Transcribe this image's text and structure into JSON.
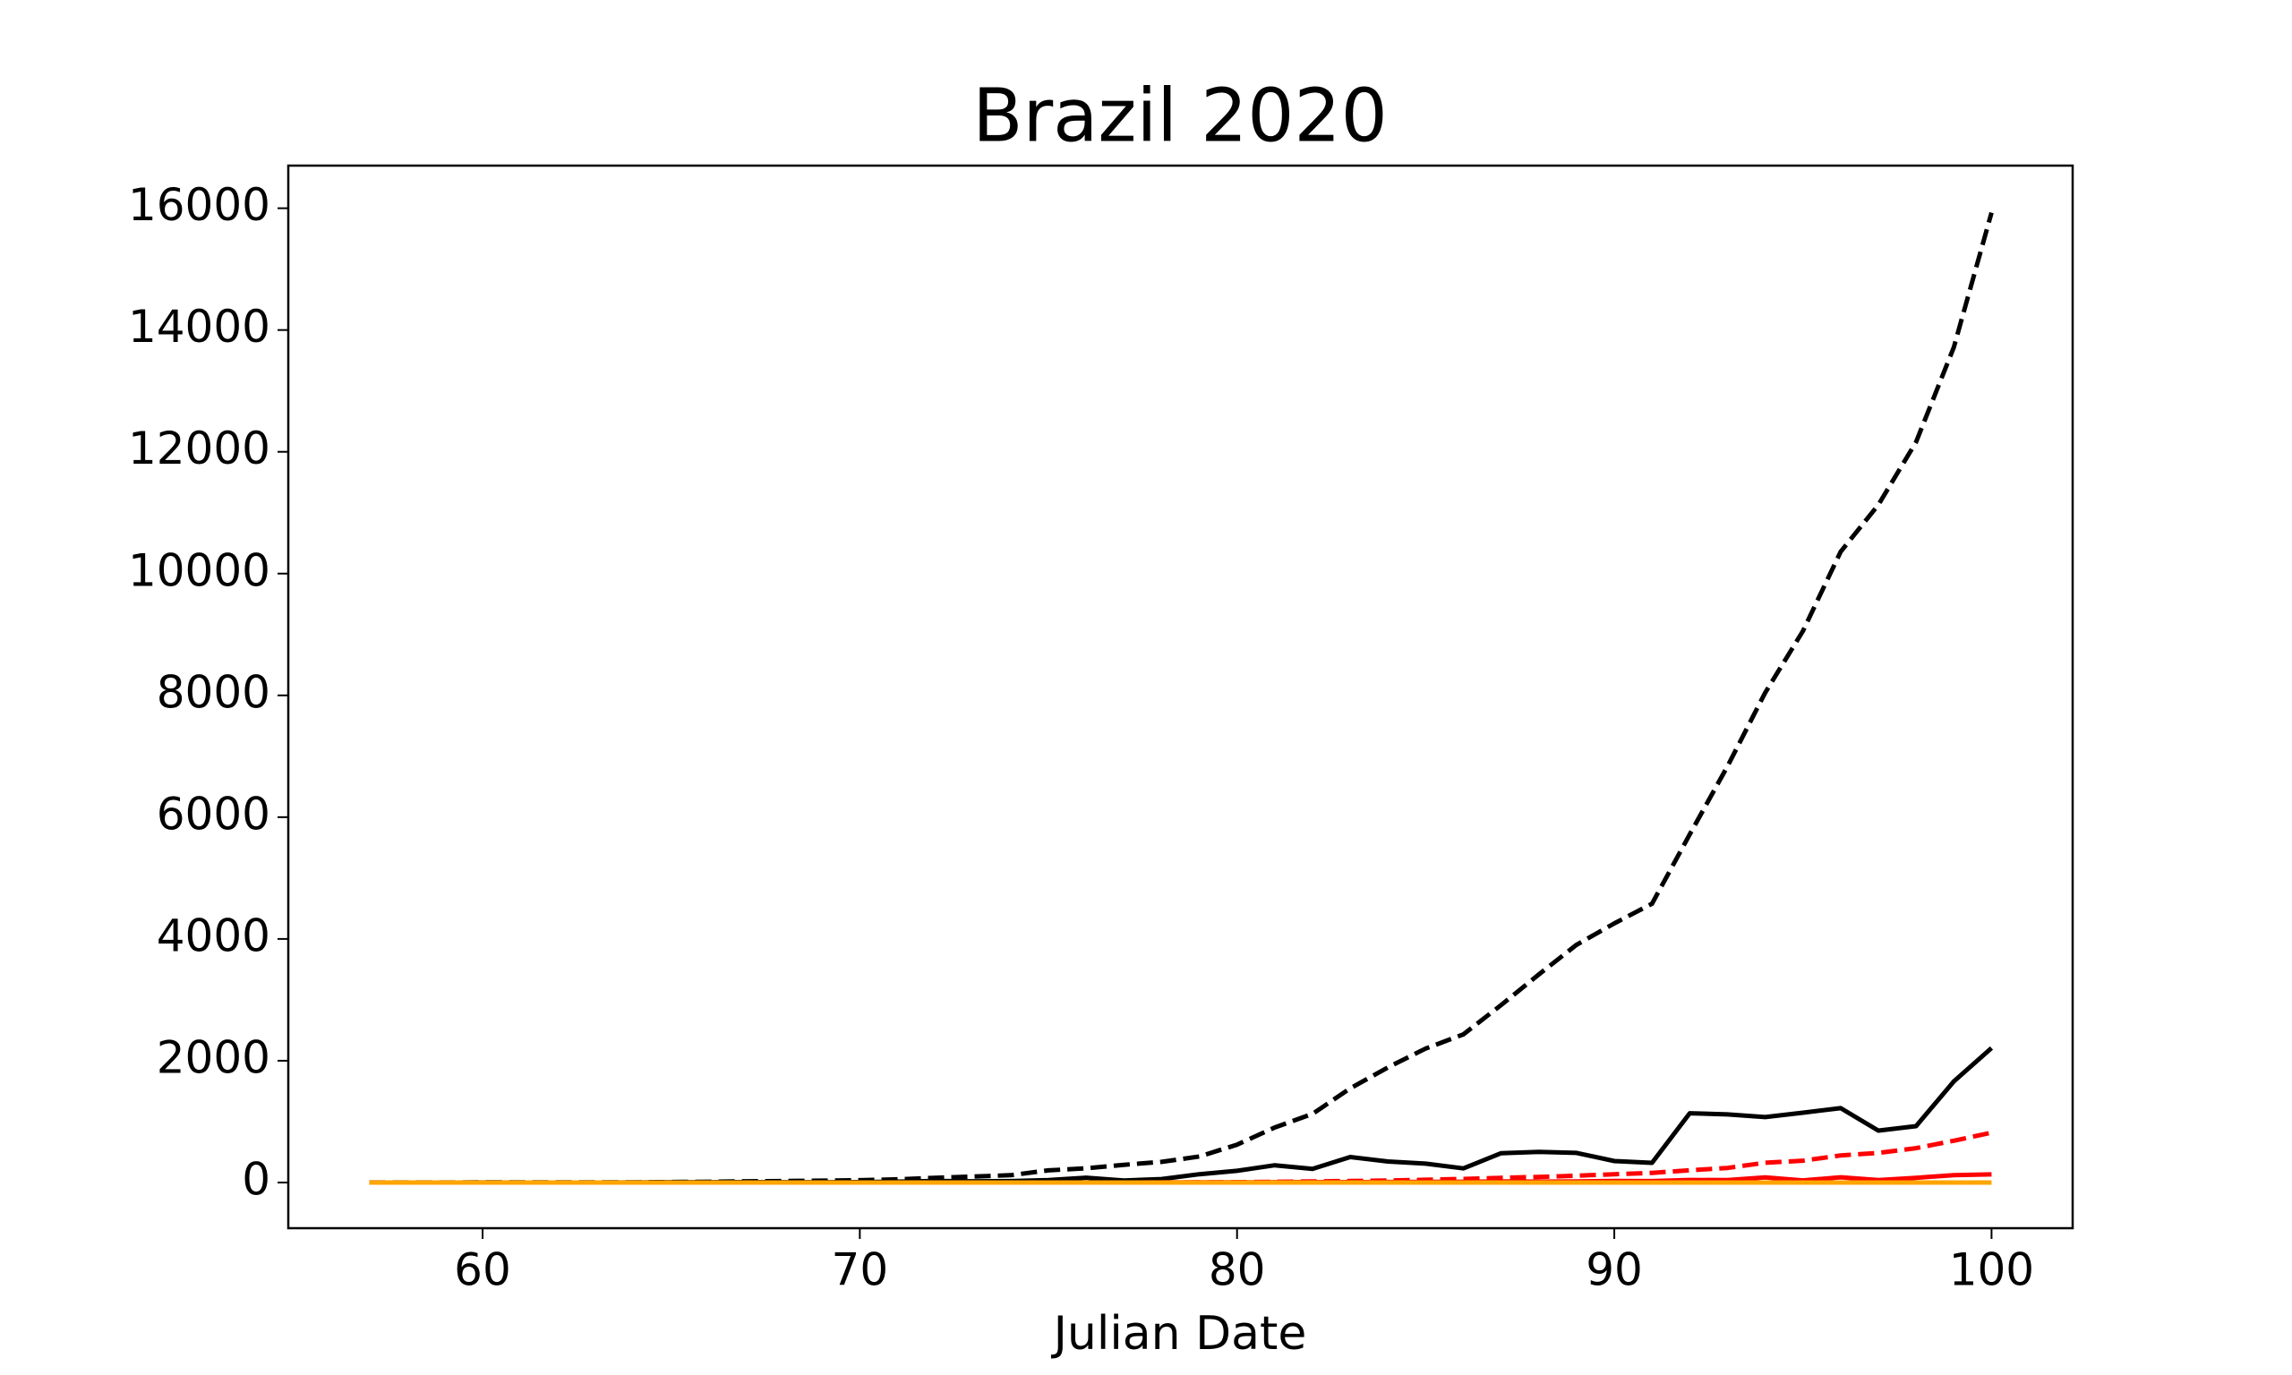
{
  "chart_data": {
    "type": "line",
    "title": "Brazil 2020",
    "x_label": "Julian Date",
    "x": [
      57,
      58,
      59,
      60,
      61,
      62,
      63,
      64,
      65,
      66,
      67,
      68,
      69,
      70,
      71,
      72,
      73,
      74,
      75,
      76,
      77,
      78,
      79,
      80,
      81,
      82,
      83,
      84,
      85,
      86,
      87,
      88,
      89,
      90,
      91,
      92,
      93,
      94,
      95,
      96,
      97,
      98,
      99,
      100
    ],
    "series": [
      {
        "color": "#000000",
        "dashed": true,
        "values": [
          1,
          1,
          1,
          2,
          2,
          2,
          2,
          3,
          8,
          13,
          20,
          25,
          31,
          38,
          52,
          77,
          98,
          121,
          200,
          234,
          291,
          340,
          428,
          621,
          904,
          1128,
          1546,
          1891,
          2201,
          2433,
          2915,
          3417,
          3904,
          4256,
          4579,
          5717,
          6836,
          8044,
          9056,
          10360,
          11130,
          12161,
          13717,
          15927
        ]
      },
      {
        "color": "#000000",
        "dashed": false,
        "values": [
          0,
          0,
          0,
          1,
          0,
          0,
          0,
          1,
          5,
          5,
          7,
          5,
          6,
          7,
          14,
          25,
          21,
          23,
          40,
          79,
          34,
          57,
          137,
          193,
          283,
          224,
          418,
          345,
          310,
          232,
          482,
          502,
          487,
          352,
          323,
          1138,
          1119,
          1074,
          1146,
          1222,
          852,
          926,
          1661,
          2210
        ]
      },
      {
        "color": "#ff0000",
        "dashed": true,
        "values": [
          0,
          0,
          0,
          0,
          0,
          0,
          0,
          0,
          0,
          0,
          0,
          0,
          0,
          0,
          0,
          0,
          0,
          0,
          0,
          0,
          0,
          1,
          3,
          6,
          11,
          18,
          25,
          34,
          46,
          59,
          77,
          92,
          111,
          136,
          159,
          201,
          240,
          324,
          359,
          445,
          486,
          564,
          686,
          819
        ]
      },
      {
        "color": "#ff0000",
        "dashed": false,
        "values": [
          0,
          0,
          0,
          0,
          0,
          0,
          0,
          0,
          0,
          0,
          0,
          0,
          0,
          0,
          0,
          0,
          0,
          0,
          0,
          0,
          0,
          1,
          2,
          3,
          5,
          7,
          7,
          9,
          12,
          13,
          18,
          15,
          19,
          25,
          23,
          42,
          39,
          84,
          35,
          86,
          41,
          78,
          122,
          133
        ]
      },
      {
        "color": "#ffa500",
        "dashed": false,
        "values": [
          0,
          0,
          0,
          0,
          0,
          0,
          0,
          0,
          0,
          0,
          0,
          0,
          0,
          0,
          0,
          0,
          0,
          0,
          0,
          0,
          0,
          0,
          0,
          0,
          0,
          0,
          0,
          0,
          0,
          0,
          0,
          0,
          0,
          0,
          0,
          0,
          0,
          0,
          0,
          0,
          0,
          0,
          0,
          0
        ]
      }
    ],
    "xlim": [
      54.85,
      102.15
    ],
    "xticks": [
      60,
      70,
      80,
      90,
      100
    ],
    "ylim": [
      -750,
      16700
    ],
    "yticks": [
      0,
      2000,
      4000,
      6000,
      8000,
      10000,
      12000,
      14000,
      16000
    ],
    "grid": false
  }
}
